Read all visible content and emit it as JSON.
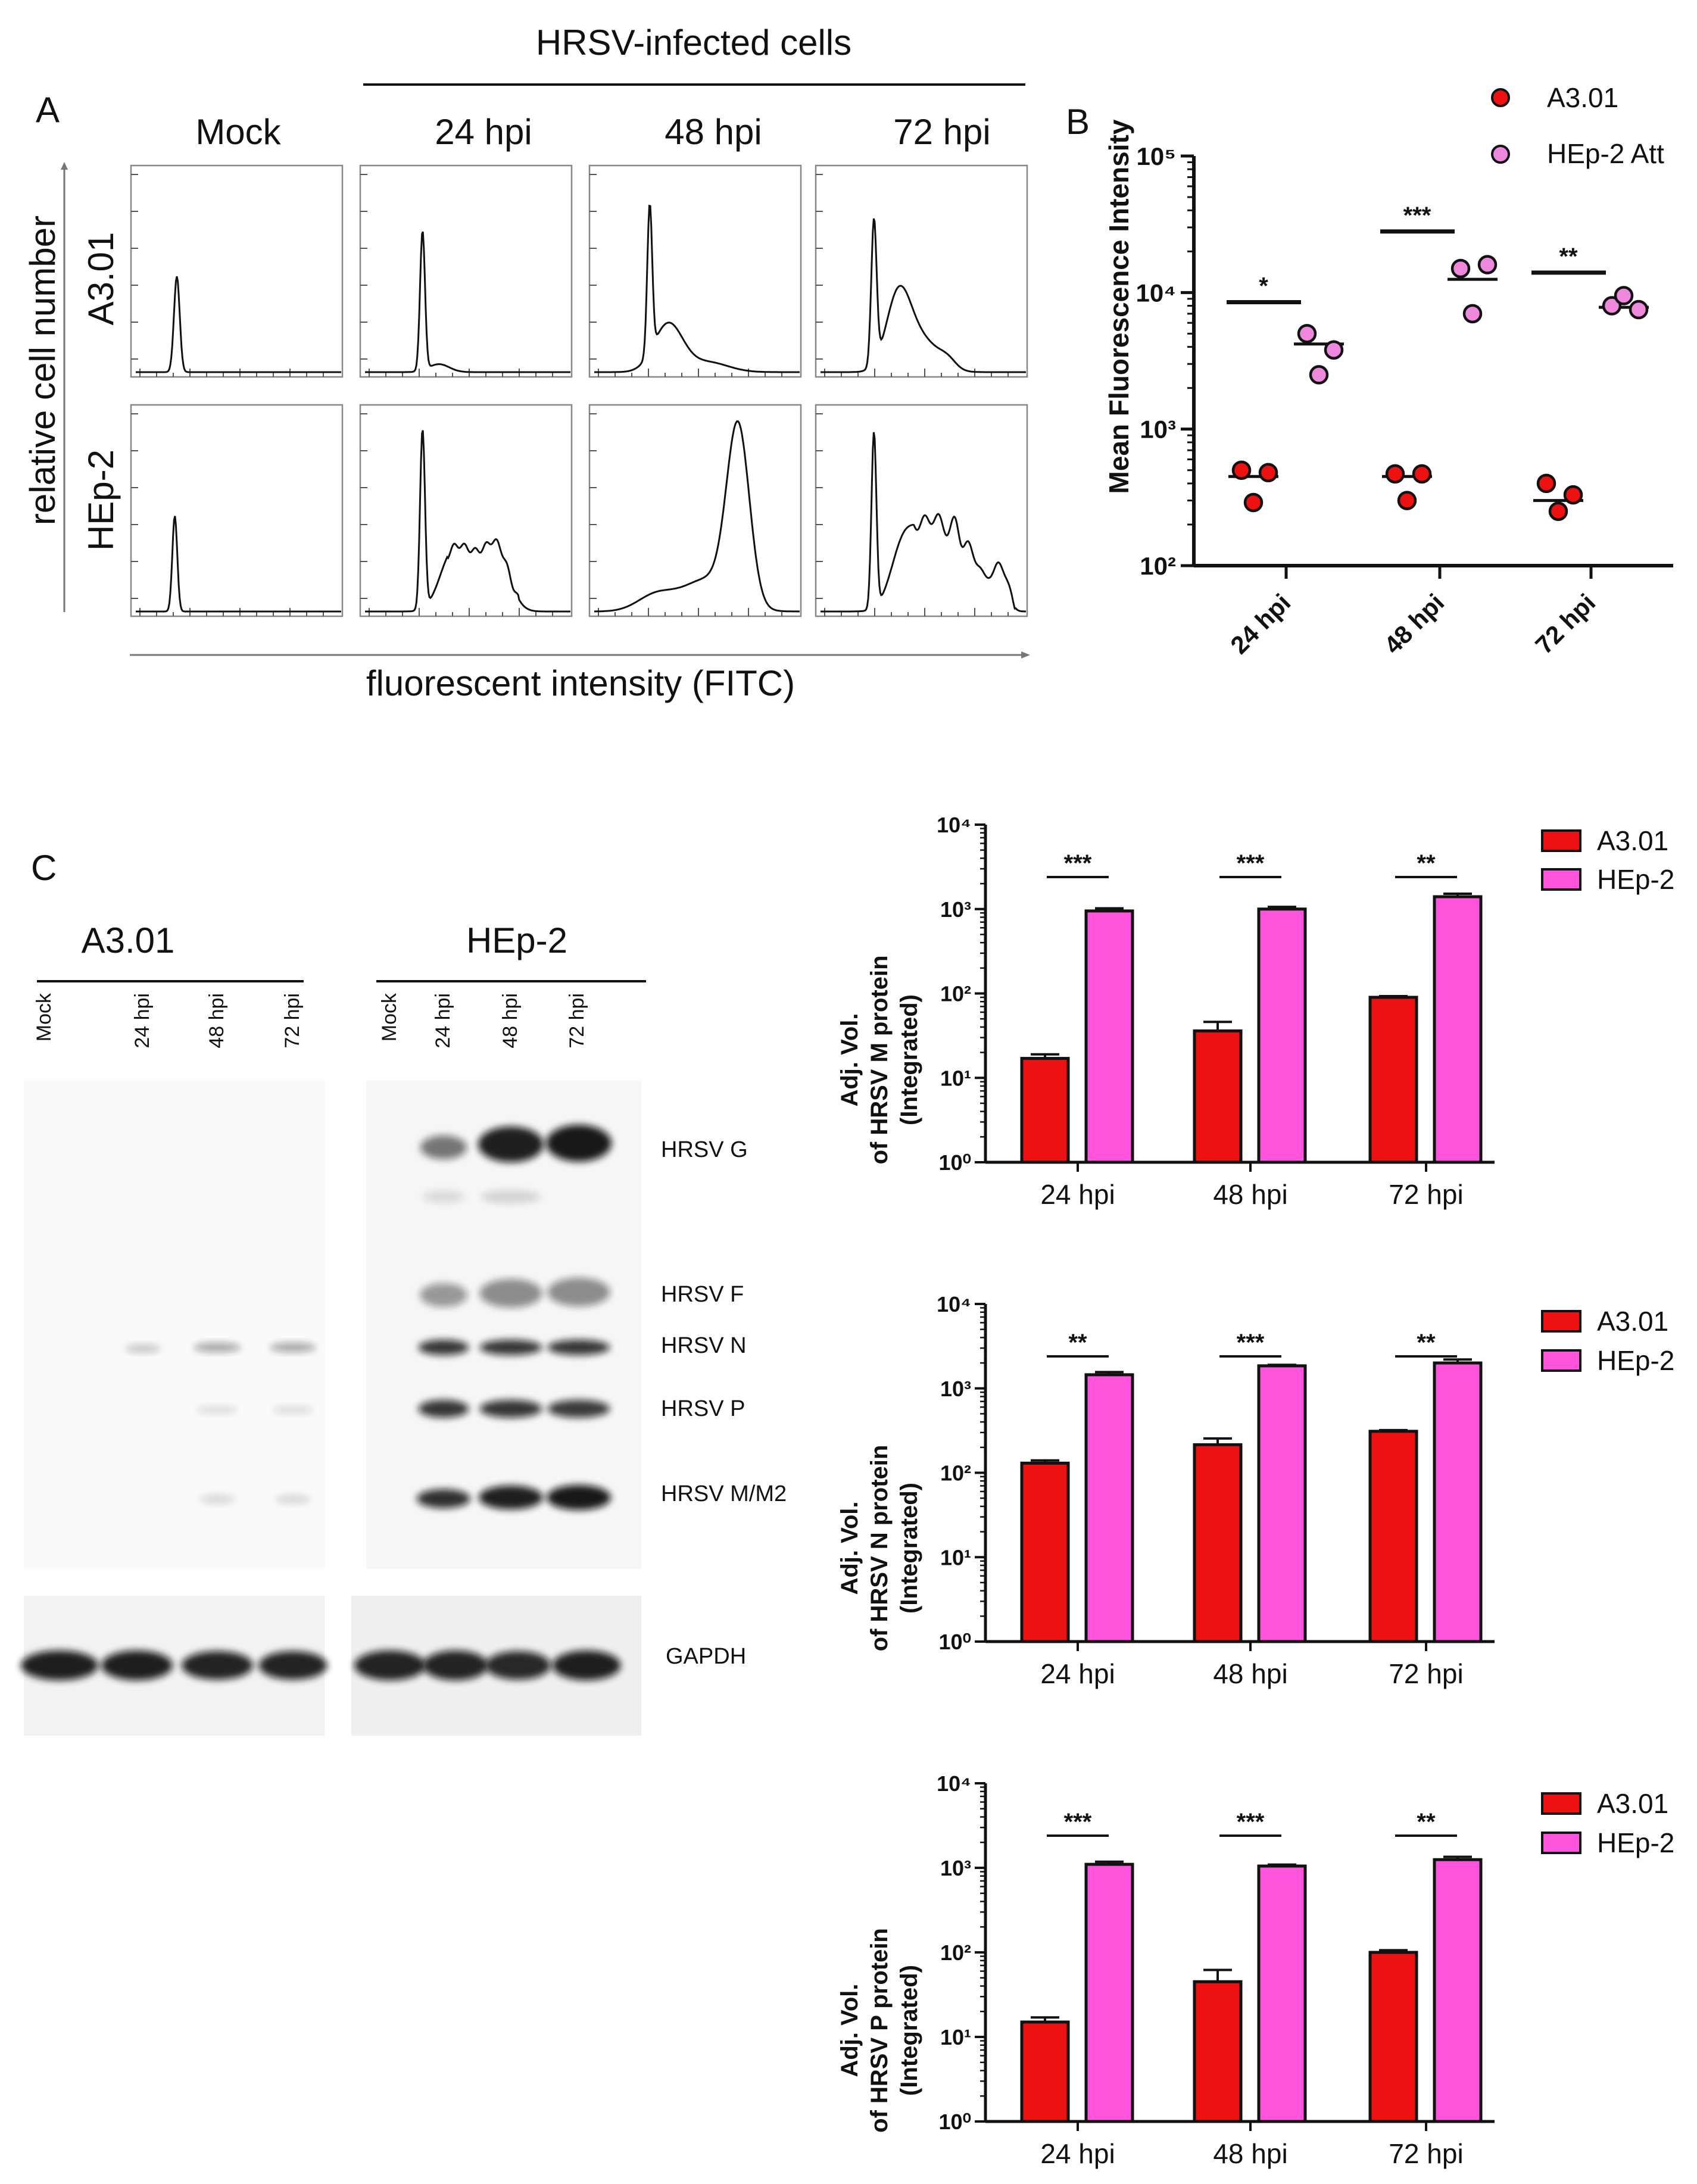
{
  "colors": {
    "a301": "#ee1111",
    "hep2": "#ff55dd",
    "hep2_dot": "#ee88dd",
    "line": "#111111"
  },
  "panel_a": {
    "letter": "A",
    "infected_header": "HRSV-infected cells",
    "columns": [
      "Mock",
      "24 hpi",
      "48 hpi",
      "72 hpi"
    ],
    "rows": [
      "A3.01",
      "HEp-2"
    ],
    "ylabel": "relative cell number",
    "xlabel": "fluorescent intensity (FITC)"
  },
  "panel_c": {
    "letter": "C",
    "groups": [
      "A3.01",
      "HEp-2"
    ],
    "lanes_a301": [
      "Mock",
      "24 hpi",
      "48 hpi",
      "72 hpi"
    ],
    "lanes_hep2": [
      "Mock",
      "24 hpi",
      "48 hpi",
      "72 hpi"
    ],
    "bands": [
      "HRSV G",
      "HRSV F",
      "HRSV N",
      "HRSV P",
      "HRSV M/M2",
      "GAPDH"
    ]
  },
  "chart_data": [
    {
      "letter": "B",
      "type": "scatter",
      "scale": "log",
      "ylabel": "Mean Fluorescence Intensity",
      "ylim": [
        100,
        100000
      ],
      "yticks": [
        "10²",
        "10³",
        "10⁴",
        "10⁵"
      ],
      "categories": [
        "24 hpi",
        "48 hpi",
        "72 hpi"
      ],
      "legend_position": "top-right",
      "series": [
        {
          "name": "A3.01",
          "points": [
            [
              500,
              480,
              290
            ],
            [
              470,
              470,
              300
            ],
            [
              400,
              330,
              250
            ]
          ],
          "means": [
            450,
            450,
            300
          ]
        },
        {
          "name": "HEp-2 Att",
          "points": [
            [
              5000,
              3800,
              2500
            ],
            [
              15000,
              16000,
              7000
            ],
            [
              8000,
              7500,
              9500
            ]
          ],
          "means": [
            4200,
            12500,
            7800
          ]
        }
      ],
      "significance": [
        "*",
        "***",
        "**"
      ],
      "sig_heights": [
        8500,
        28000,
        14000
      ]
    },
    {
      "type": "bar",
      "scale": "log",
      "ylabel": "Adj. Vol. of HRSV M protein (Integrated)",
      "ylabel_lines": [
        "Adj.  Vol.",
        "of HRSV M protein",
        "(Integrated)"
      ],
      "ylim": [
        1,
        10000
      ],
      "yticks": [
        "10⁰",
        "10¹",
        "10²",
        "10³",
        "10⁴"
      ],
      "categories": [
        "24 hpi",
        "48 hpi",
        "72 hpi"
      ],
      "legend_position": "top-right",
      "series": [
        {
          "name": "A3.01",
          "values": [
            17,
            36,
            90
          ],
          "errors": [
            19,
            46,
            93
          ]
        },
        {
          "name": "HEp-2",
          "values": [
            950,
            1000,
            1400
          ],
          "errors": [
            1020,
            1060,
            1520
          ]
        }
      ],
      "significance": [
        "***",
        "***",
        "**"
      ]
    },
    {
      "type": "bar",
      "scale": "log",
      "ylabel": "Adj. Vol. of HRSV N protein (Integrated)",
      "ylabel_lines": [
        "Adj.  Vol.",
        "of HRSV N protein",
        "(Integrated)"
      ],
      "ylim": [
        1,
        10000
      ],
      "yticks": [
        "10⁰",
        "10¹",
        "10²",
        "10³",
        "10⁴"
      ],
      "categories": [
        "24 hpi",
        "48 hpi",
        "72 hpi"
      ],
      "legend_position": "top-right",
      "series": [
        {
          "name": "A3.01",
          "values": [
            130,
            215,
            310
          ],
          "errors": [
            140,
            255,
            320
          ]
        },
        {
          "name": "HEp-2",
          "values": [
            1450,
            1850,
            2000
          ],
          "errors": [
            1560,
            1900,
            2200
          ]
        }
      ],
      "significance": [
        "**",
        "***",
        "**"
      ]
    },
    {
      "type": "bar",
      "scale": "log",
      "ylabel": "Adj. Vol. of HRSV P protein (Integrated)",
      "ylabel_lines": [
        "Adj.  Vol.",
        "of HRSV P protein",
        "(Integrated)"
      ],
      "ylim": [
        1,
        10000
      ],
      "yticks": [
        "10⁰",
        "10¹",
        "10²",
        "10³",
        "10⁴"
      ],
      "categories": [
        "24 hpi",
        "48 hpi",
        "72 hpi"
      ],
      "legend_position": "top-right",
      "series": [
        {
          "name": "A3.01",
          "values": [
            15,
            45,
            100
          ],
          "errors": [
            17,
            62,
            106
          ]
        },
        {
          "name": "HEp-2",
          "values": [
            1100,
            1050,
            1250
          ],
          "errors": [
            1180,
            1090,
            1350
          ]
        }
      ],
      "significance": [
        "***",
        "***",
        "**"
      ]
    }
  ]
}
